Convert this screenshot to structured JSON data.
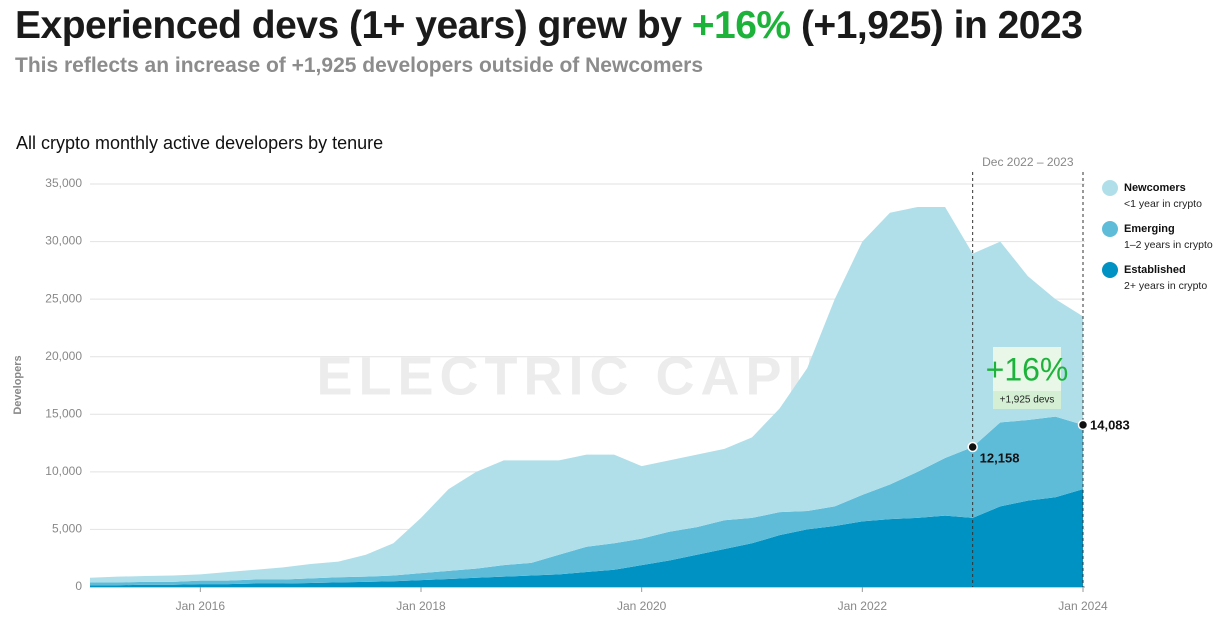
{
  "chart_data": {
    "type": "stacked_area",
    "title_parts": [
      {
        "text": "Experienced devs (1+ years) grew by ",
        "color": "#1a1a1a"
      },
      {
        "text": "+16%",
        "color": "#1db33b"
      },
      {
        "text": " (+1,925) in 2023",
        "color": "#1a1a1a"
      }
    ],
    "subtitle": "This reflects an increase of +1,925 developers outside of Newcomers",
    "chart_title": "All crypto monthly active developers by tenure",
    "y_label": "Developers",
    "watermark": "ELECTRIC CAPITAL",
    "x": [
      "2015-01",
      "2015-04",
      "2015-07",
      "2015-10",
      "2016-01",
      "2016-04",
      "2016-07",
      "2016-10",
      "2017-01",
      "2017-04",
      "2017-07",
      "2017-10",
      "2018-01",
      "2018-04",
      "2018-07",
      "2018-10",
      "2019-01",
      "2019-04",
      "2019-07",
      "2019-10",
      "2020-01",
      "2020-04",
      "2020-07",
      "2020-10",
      "2021-01",
      "2021-04",
      "2021-07",
      "2021-10",
      "2022-01",
      "2022-04",
      "2022-07",
      "2022-10",
      "2023-01",
      "2023-04",
      "2023-07",
      "2023-10",
      "2024-01"
    ],
    "xlim": [
      "2015-01",
      "2024-01"
    ],
    "xticks": [
      {
        "value": "2016-01",
        "label": "Jan 2016"
      },
      {
        "value": "2018-01",
        "label": "Jan 2018"
      },
      {
        "value": "2020-01",
        "label": "Jan 2020"
      },
      {
        "value": "2022-01",
        "label": "Jan 2022"
      },
      {
        "value": "2024-01",
        "label": "Jan 2024"
      }
    ],
    "ylim": [
      0,
      35000
    ],
    "yticks": [
      0,
      {
        "value": 5000,
        "label": "5,000"
      },
      {
        "value": 10000,
        "label": "10,000"
      },
      {
        "value": 15000,
        "label": "15,000"
      },
      {
        "value": 20000,
        "label": "20,000"
      },
      {
        "value": 25000,
        "label": "25,000"
      },
      {
        "value": 30000,
        "label": "30,000"
      },
      {
        "value": 35000,
        "label": "35,000"
      }
    ],
    "grid": true,
    "series": [
      {
        "name": "Established",
        "description": "2+ years in crypto",
        "color": "#0092c3",
        "values": [
          150,
          150,
          200,
          200,
          250,
          250,
          300,
          300,
          350,
          400,
          450,
          500,
          600,
          700,
          800,
          900,
          1000,
          1100,
          1300,
          1500,
          1900,
          2300,
          2800,
          3300,
          3800,
          4500,
          5000,
          5300,
          5700,
          5900,
          6000,
          6200,
          6000,
          7000,
          7500,
          7800,
          8500
        ]
      },
      {
        "name": "Emerging",
        "description": "1–2 years in crypto",
        "color": "#5fbcd9",
        "values": [
          250,
          250,
          250,
          250,
          300,
          300,
          350,
          350,
          400,
          450,
          450,
          500,
          600,
          700,
          800,
          1000,
          1100,
          1700,
          2200,
          2300,
          2300,
          2500,
          2400,
          2500,
          2200,
          2000,
          1600,
          1700,
          2300,
          3000,
          4000,
          5000,
          6158,
          7300,
          7000,
          7000,
          5583
        ]
      },
      {
        "name": "Newcomers",
        "description": "<1 year in crypto",
        "color": "#b0dfea",
        "values": [
          400,
          500,
          500,
          550,
          550,
          750,
          850,
          1050,
          1250,
          1350,
          1900,
          2800,
          4800,
          7100,
          8400,
          9100,
          8900,
          8200,
          8000,
          7700,
          6300,
          6200,
          6300,
          6200,
          7000,
          9000,
          12400,
          18000,
          22000,
          23600,
          23000,
          21800,
          16800,
          15700,
          12500,
          10200,
          9417
        ]
      }
    ],
    "period": {
      "label": "Dec 2022 – 2023",
      "start": "2023-01",
      "end": "2024-01"
    },
    "markers": [
      {
        "x": "2023-01",
        "value": 12158,
        "label": "12,158"
      },
      {
        "x": "2024-01",
        "value": 14083,
        "label": "14,083"
      }
    ],
    "change": {
      "label": "+16%",
      "sublabel": "+1,925 devs"
    }
  }
}
